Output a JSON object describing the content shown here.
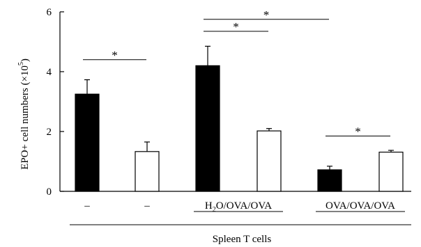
{
  "chart_data": {
    "type": "bar",
    "ylabel": "EPO+ cell numbers (×10⁵)",
    "ylabel_parts": {
      "main": "EPO+ cell numbers (×10",
      "exp": "5",
      "close": ")"
    },
    "ylim": [
      0,
      6
    ],
    "yticks": [
      "0",
      "2",
      "4",
      "6"
    ],
    "grid": false,
    "bars": [
      {
        "value": 3.25,
        "error": 0.48,
        "fill": "black"
      },
      {
        "value": 1.33,
        "error": 0.32,
        "fill": "white"
      },
      {
        "value": 4.2,
        "error": 0.65,
        "fill": "black"
      },
      {
        "value": 2.02,
        "error": 0.08,
        "fill": "white"
      },
      {
        "value": 0.72,
        "error": 0.12,
        "fill": "black"
      },
      {
        "value": 1.31,
        "error": 0.06,
        "fill": "white"
      }
    ],
    "group_labels": [
      {
        "text": "–",
        "bars": [
          0,
          0
        ]
      },
      {
        "text": "–",
        "bars": [
          1,
          1
        ]
      },
      {
        "text": "H₂O/OVA/OVA",
        "parts": {
          "a": "H",
          "sub": "2",
          "b": "O/OVA/OVA"
        },
        "bars": [
          2,
          3
        ]
      },
      {
        "text": "OVA/OVA/OVA",
        "bars": [
          4,
          5
        ]
      }
    ],
    "xlabel": "Spleen T cells",
    "significance": [
      {
        "from": 0,
        "to": 1,
        "y": 4.4,
        "label": "*"
      },
      {
        "from": 2,
        "to": 3,
        "y": 5.35,
        "label": "*"
      },
      {
        "from": 2,
        "to": 4,
        "y": 5.75,
        "label": "*"
      },
      {
        "from": 4,
        "to": 5,
        "y": 1.85,
        "label": "*"
      }
    ]
  },
  "colors": {
    "black": "#000000",
    "white": "#ffffff",
    "axis": "#000000"
  }
}
